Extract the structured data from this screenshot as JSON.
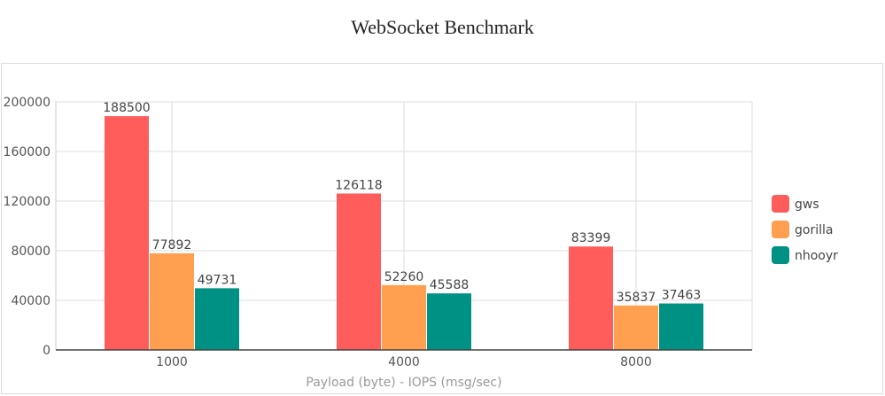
{
  "chart_data": {
    "type": "bar",
    "title": "WebSocket Benchmark",
    "xlabel": "Payload (byte) - IOPS (msg/sec)",
    "ylabel": "",
    "categories": [
      "1000",
      "4000",
      "8000"
    ],
    "series": [
      {
        "name": "gws",
        "color": "#ff5c5c",
        "values": [
          188500,
          126118,
          83399
        ]
      },
      {
        "name": "gorilla",
        "color": "#ff9f4f",
        "values": [
          77892,
          52260,
          35837
        ]
      },
      {
        "name": "nhooyr",
        "color": "#009185",
        "values": [
          49731,
          45588,
          37463
        ]
      }
    ],
    "ylim": [
      0,
      200000
    ],
    "yticks": [
      0,
      40000,
      80000,
      120000,
      160000,
      200000
    ],
    "grid": true,
    "legend_position": "right"
  }
}
